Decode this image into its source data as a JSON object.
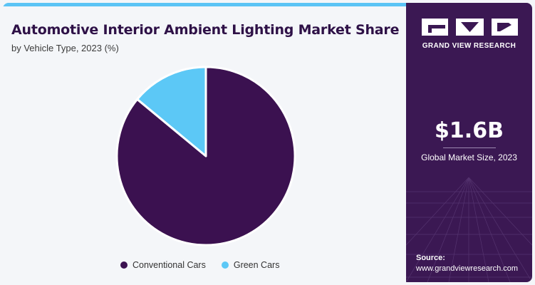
{
  "header": {
    "title": "Automotive Interior Ambient Lighting Market Share",
    "subtitle": "by Vehicle Type, 2023 (%)"
  },
  "chart_data": {
    "type": "pie",
    "categories": [
      "Conventional Cars",
      "Green Cars"
    ],
    "values": [
      86,
      14
    ],
    "colors": [
      "#3b1150",
      "#5cc8f6"
    ],
    "legend_position": "bottom"
  },
  "sidebar": {
    "brand": "GRAND VIEW RESEARCH",
    "market_size": "$1.6B",
    "market_size_caption": "Global Market Size, 2023",
    "source_label": "Source:",
    "source_url": "www.grandviewresearch.com"
  },
  "colors": {
    "accent": "#5bc4f5",
    "sidebar_bg": "#3b1853",
    "title": "#2e1147"
  }
}
